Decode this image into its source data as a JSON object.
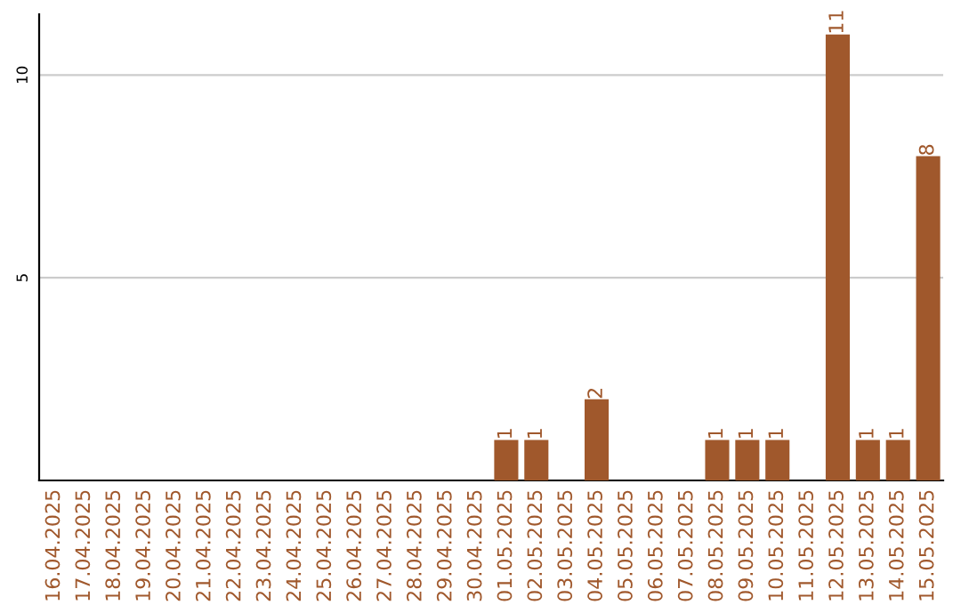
{
  "chart_data": {
    "type": "bar",
    "categories": [
      "16.04.2025",
      "17.04.2025",
      "18.04.2025",
      "19.04.2025",
      "20.04.2025",
      "21.04.2025",
      "22.04.2025",
      "23.04.2025",
      "24.04.2025",
      "25.04.2025",
      "26.04.2025",
      "27.04.2025",
      "28.04.2025",
      "29.04.2025",
      "30.04.2025",
      "01.05.2025",
      "02.05.2025",
      "03.05.2025",
      "04.05.2025",
      "05.05.2025",
      "06.05.2025",
      "07.05.2025",
      "08.05.2025",
      "09.05.2025",
      "10.05.2025",
      "11.05.2025",
      "12.05.2025",
      "13.05.2025",
      "14.05.2025",
      "15.05.2025"
    ],
    "values": [
      0,
      0,
      0,
      0,
      0,
      0,
      0,
      0,
      0,
      0,
      0,
      0,
      0,
      0,
      0,
      1,
      1,
      0,
      2,
      0,
      0,
      0,
      1,
      1,
      1,
      0,
      11,
      1,
      1,
      8
    ],
    "value_labels": [
      null,
      null,
      null,
      null,
      null,
      null,
      null,
      null,
      null,
      null,
      null,
      null,
      null,
      null,
      null,
      "1",
      "1",
      null,
      "2",
      null,
      null,
      null,
      "1",
      "1",
      "1",
      null,
      "11",
      "1",
      "1",
      "8"
    ],
    "color": "#a0582c",
    "ylim": [
      0,
      11.5
    ],
    "yticks": [
      5,
      10
    ],
    "grid": "y"
  }
}
